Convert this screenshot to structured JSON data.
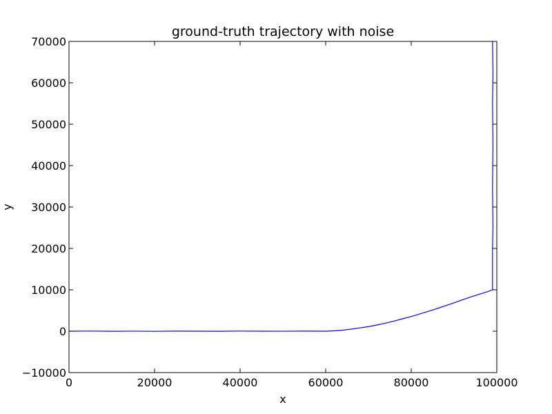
{
  "chart_data": {
    "type": "line",
    "title": "ground-truth trajectory with noise",
    "xlabel": "x",
    "ylabel": "y",
    "xlim": [
      0,
      100000
    ],
    "ylim": [
      -10000,
      70000
    ],
    "xticks": [
      0,
      20000,
      40000,
      60000,
      80000,
      100000
    ],
    "xtick_labels": [
      "0",
      "20000",
      "40000",
      "60000",
      "80000",
      "100000"
    ],
    "yticks": [
      -10000,
      0,
      10000,
      20000,
      30000,
      40000,
      50000,
      60000,
      70000
    ],
    "ytick_labels": [
      "−10000",
      "0",
      "10000",
      "20000",
      "30000",
      "40000",
      "50000",
      "60000",
      "70000"
    ],
    "grid": false,
    "legend": "none",
    "series": [
      {
        "color": "#0000ff",
        "x": [
          0,
          5000,
          10000,
          15000,
          20000,
          25000,
          30000,
          35000,
          40000,
          45000,
          50000,
          55000,
          60000,
          62000,
          64000,
          66000,
          68000,
          70000,
          72000,
          74000,
          76000,
          78000,
          80000,
          82000,
          84000,
          86000,
          88000,
          90000,
          92000,
          94000,
          96000,
          98000,
          99000,
          99000,
          99100,
          99000,
          99100,
          99000,
          99100,
          99000
        ],
        "y": [
          0,
          30,
          -20,
          10,
          -30,
          20,
          0,
          -20,
          30,
          0,
          -10,
          20,
          0,
          80,
          250,
          500,
          800,
          1100,
          1500,
          1950,
          2450,
          3000,
          3550,
          4150,
          4800,
          5450,
          6150,
          6850,
          7600,
          8300,
          8950,
          9600,
          10000,
          20000,
          25000,
          35000,
          45000,
          55000,
          62000,
          70000
        ]
      }
    ]
  }
}
